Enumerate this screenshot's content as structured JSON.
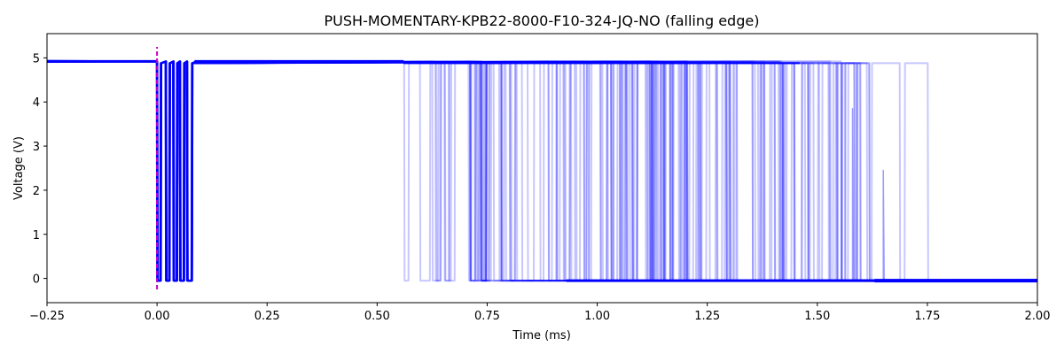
{
  "chart_data": {
    "type": "line",
    "title": "PUSH-MOMENTARY-KPB22-8000-F10-324-JQ-NO (falling edge)",
    "xlabel": "Time (ms)",
    "ylabel": "Voltage (V)",
    "xlim": [
      -0.25,
      2.0
    ],
    "ylim": [
      -0.55,
      5.55
    ],
    "xticks": [
      -0.25,
      0.0,
      0.25,
      0.5,
      0.75,
      1.0,
      1.25,
      1.5,
      1.75,
      2.0
    ],
    "xtick_labels": [
      "−0.25",
      "0.00",
      "0.25",
      "0.50",
      "0.75",
      "1.00",
      "1.25",
      "1.50",
      "1.75",
      "2.00"
    ],
    "yticks": [
      0,
      1,
      2,
      3,
      4,
      5
    ],
    "ytick_labels": [
      "0",
      "1",
      "2",
      "3",
      "4",
      "5"
    ],
    "grid": false,
    "high_level_v": 4.92,
    "settled_level_v": 4.88,
    "low_level_v": -0.05,
    "trigger_time_ms": 0.0,
    "trigger_marker": {
      "x": 0.0,
      "y_range": [
        -0.25,
        5.25
      ],
      "color": "#c800c8",
      "style": "dashed"
    },
    "trace_color": "#0000ff",
    "initial_bounce_pulses_ms": [
      [
        0.0,
        0.008
      ],
      [
        0.02,
        0.028
      ],
      [
        0.037,
        0.045
      ],
      [
        0.052,
        0.061
      ],
      [
        0.068,
        0.079
      ]
    ],
    "bounce_start_ms": 0.56,
    "bounce_windows_ms": [
      [
        0.56,
        0.77
      ],
      [
        0.88,
        1.63
      ]
    ],
    "final_low_reached_ms": 1.65,
    "outlier_spikes": [
      {
        "x": 1.65,
        "v": 2.45
      },
      {
        "x": 1.58,
        "v": 3.85
      }
    ]
  }
}
